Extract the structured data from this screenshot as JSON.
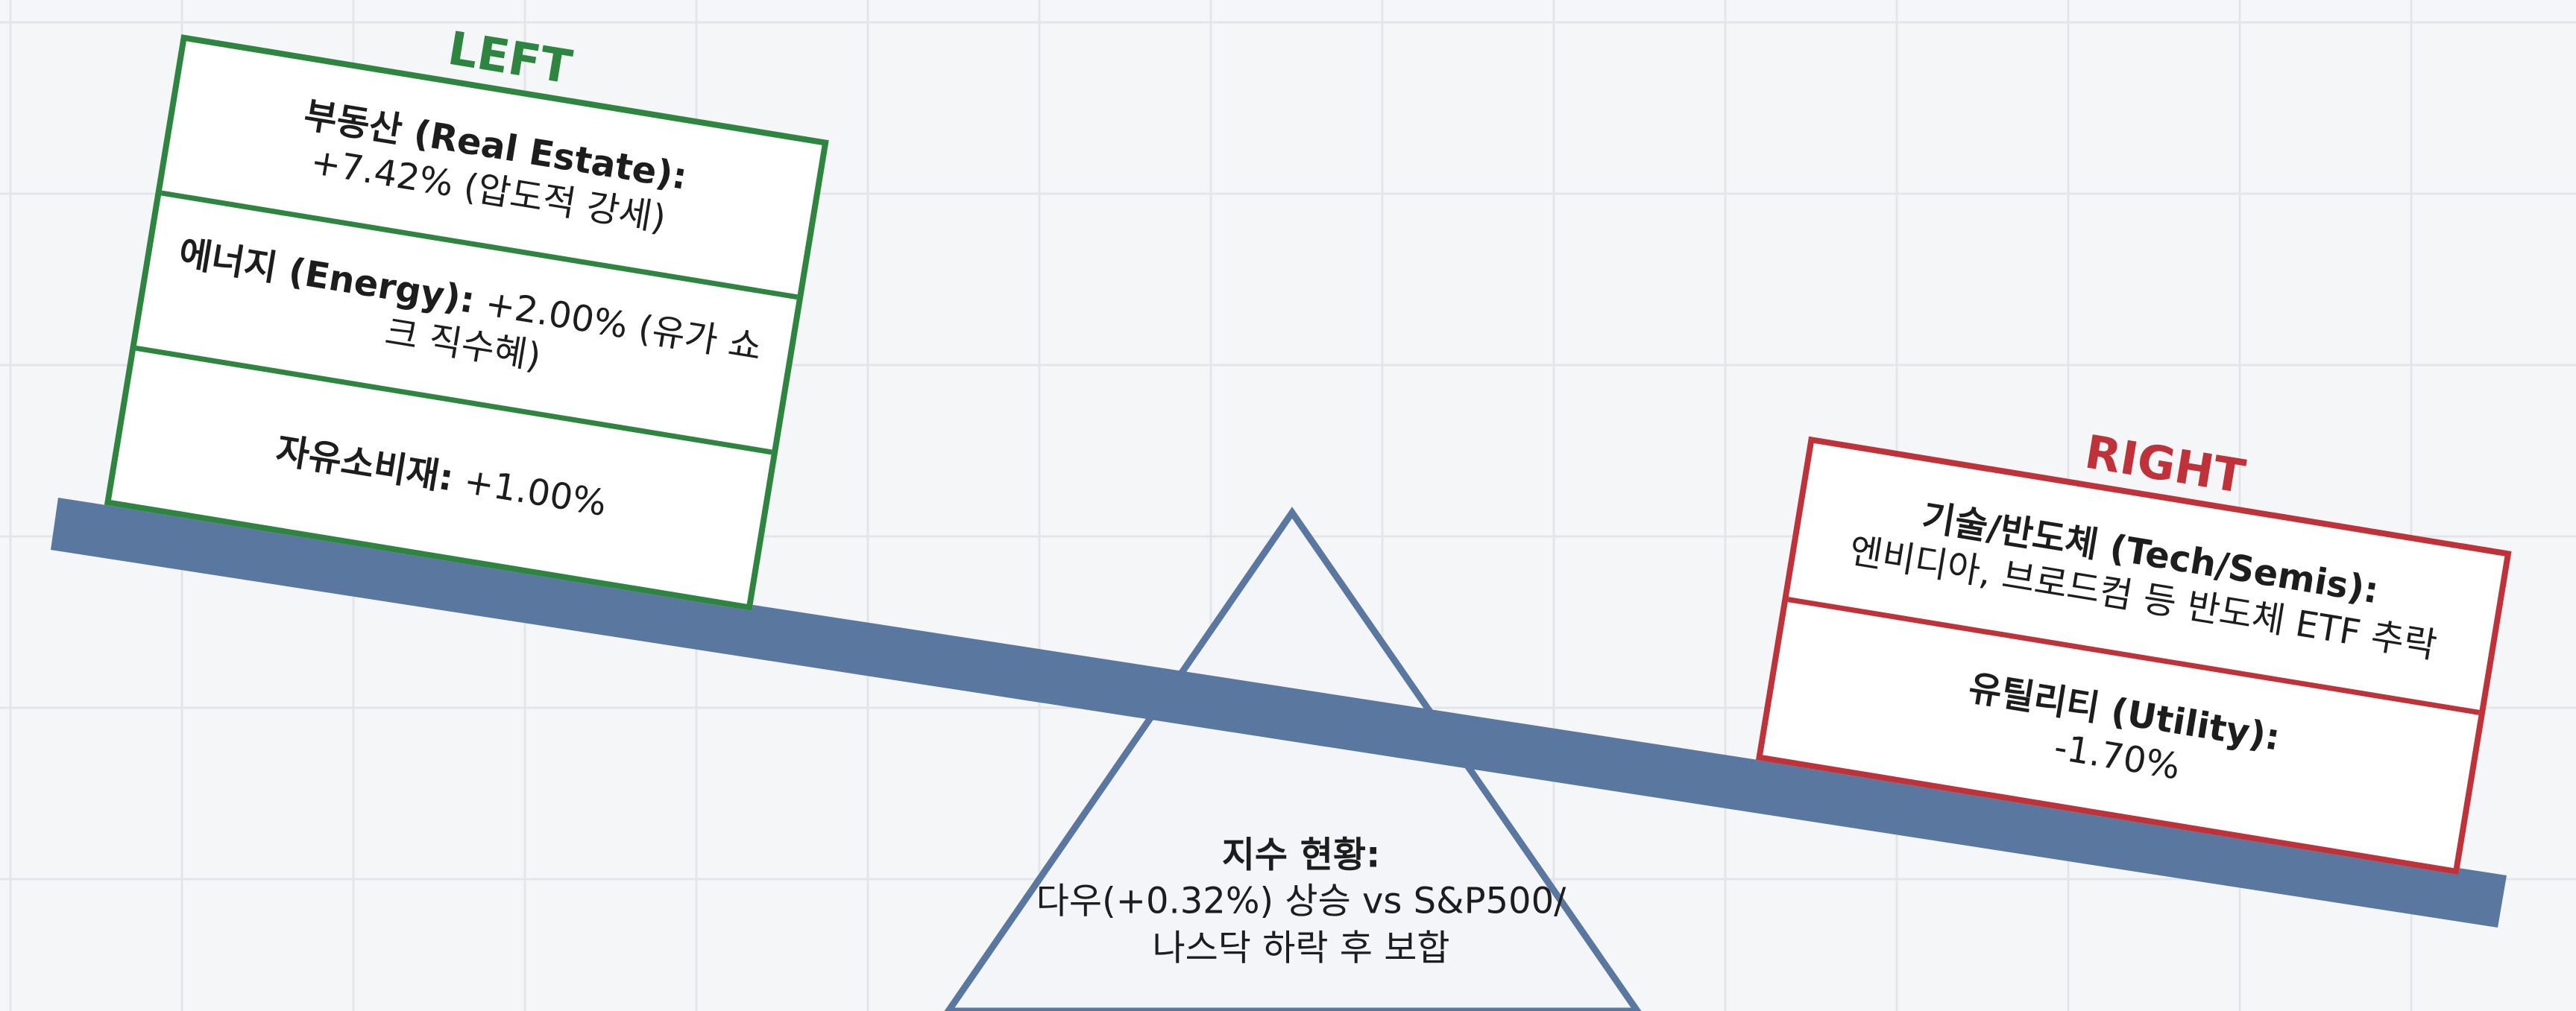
{
  "left": {
    "label": "LEFT",
    "items": [
      {
        "title": "부동산 (Real Estate):",
        "detail": "+7.42% (압도적 강세)"
      },
      {
        "title": "에너지 (Energy):",
        "detail": "+2.00% (유가 쇼크 직수혜)"
      },
      {
        "title": "자유소비재:",
        "detail": "+1.00%"
      }
    ]
  },
  "right": {
    "label": "RIGHT",
    "items": [
      {
        "title": "기술/반도체 (Tech/Semis):",
        "detail": "엔비디아, 브로드컴 등 반도체 ETF 추락"
      },
      {
        "title": "유틸리티 (Utility):",
        "detail": "-1.70%"
      }
    ]
  },
  "center": {
    "title": "지수 현황:",
    "detail": "다우(+0.32%) 상승 vs S&P500/나스닥 하락 후 보합"
  }
}
